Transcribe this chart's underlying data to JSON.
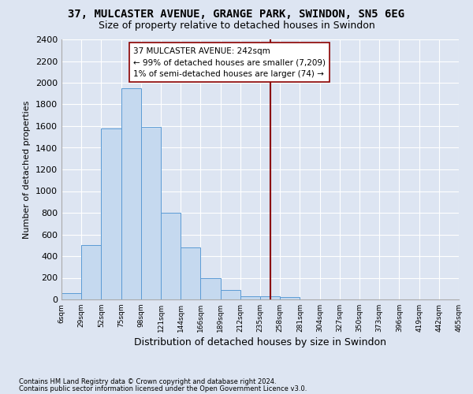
{
  "title": "37, MULCASTER AVENUE, GRANGE PARK, SWINDON, SN5 6EG",
  "subtitle": "Size of property relative to detached houses in Swindon",
  "xlabel": "Distribution of detached houses by size in Swindon",
  "ylabel": "Number of detached properties",
  "footnote1": "Contains HM Land Registry data © Crown copyright and database right 2024.",
  "footnote2": "Contains public sector information licensed under the Open Government Licence v3.0.",
  "bin_labels": [
    "6sqm",
    "29sqm",
    "52sqm",
    "75sqm",
    "98sqm",
    "121sqm",
    "144sqm",
    "166sqm",
    "189sqm",
    "212sqm",
    "235sqm",
    "258sqm",
    "281sqm",
    "304sqm",
    "327sqm",
    "350sqm",
    "373sqm",
    "396sqm",
    "419sqm",
    "442sqm",
    "465sqm"
  ],
  "bar_values": [
    55,
    500,
    1580,
    1950,
    1590,
    800,
    480,
    200,
    90,
    30,
    30,
    20,
    0,
    0,
    0,
    0,
    0,
    0,
    0,
    0
  ],
  "bar_color": "#c5d9ef",
  "bar_edge_color": "#5b9bd5",
  "vline_x": 10.5,
  "vline_color": "#8b0000",
  "annotation_line1": "37 MULCASTER AVENUE: 242sqm",
  "annotation_line2": "← 99% of detached houses are smaller (7,209)",
  "annotation_line3": "1% of semi-detached houses are larger (74) →",
  "ylim_max": 2400,
  "ytick_step": 200,
  "bg_color": "#dde5f2",
  "grid_color": "#ffffff",
  "title_fontsize": 10,
  "subtitle_fontsize": 9,
  "ylabel_fontsize": 8,
  "xlabel_fontsize": 9,
  "footnote_fontsize": 6
}
